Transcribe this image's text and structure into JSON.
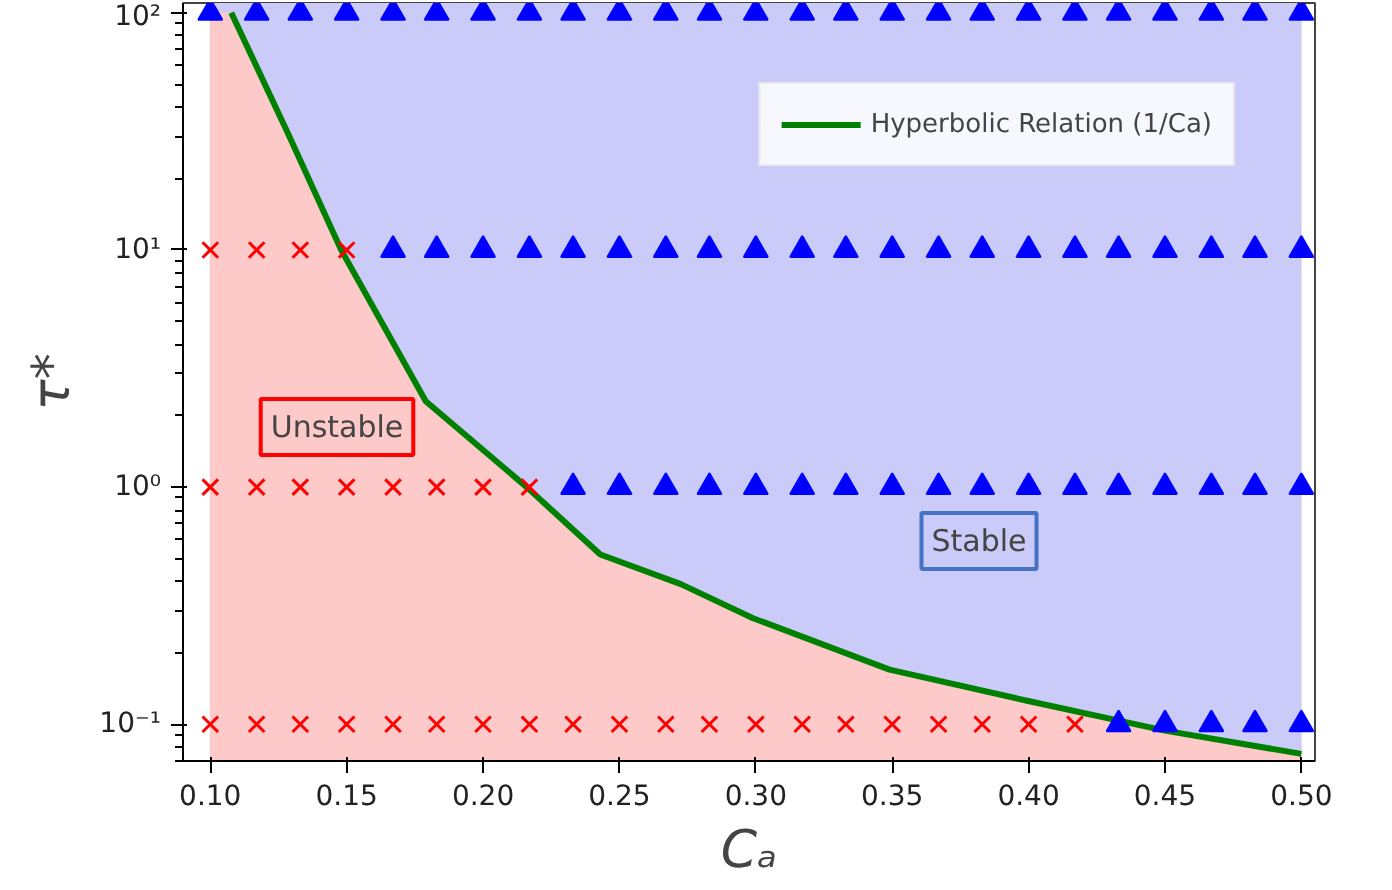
{
  "chart_data": {
    "type": "scatter",
    "xlabel": "Cₐ",
    "ylabel": "τ*",
    "log": "y",
    "xlim": [
      0.09,
      0.505
    ],
    "ylim": [
      0.07,
      110
    ],
    "xticks": [
      {
        "value": 0.1,
        "label": "0.10"
      },
      {
        "value": 0.15,
        "label": "0.15"
      },
      {
        "value": 0.2,
        "label": "0.20"
      },
      {
        "value": 0.25,
        "label": "0.25"
      },
      {
        "value": 0.3,
        "label": "0.30"
      },
      {
        "value": 0.35,
        "label": "0.35"
      },
      {
        "value": 0.4,
        "label": "0.40"
      },
      {
        "value": 0.45,
        "label": "0.45"
      },
      {
        "value": 0.5,
        "label": "0.50"
      }
    ],
    "yticks": [
      {
        "value": 0.1,
        "label": "10⁻¹"
      },
      {
        "value": 1,
        "label": "10⁰"
      },
      {
        "value": 10,
        "label": "10¹"
      },
      {
        "value": 100,
        "label": "10²"
      }
    ],
    "grid": false,
    "legend": "top right",
    "line_style": "solid",
    "bands": [
      {
        "axis": "x",
        "from": 0.1,
        "to": 0.5,
        "color": "#cbcbf9"
      }
    ],
    "series": [
      {
        "type": "area",
        "color": "#fdc9c9",
        "x": [
          0.1,
          0.1077,
          0.1285,
          0.148,
          0.179,
          0.216,
          0.243,
          0.2725,
          0.299,
          0.349,
          0.399,
          0.45,
          0.5
        ],
        "values": [
          100,
          100,
          31,
          10,
          2.3,
          1,
          0.52,
          0.39,
          0.28,
          0.17,
          0.126,
          0.094,
          0.075
        ]
      },
      {
        "type": "line",
        "name": "Hyperbolic Relation (1/Ca)",
        "color": "#008000",
        "marker": "none",
        "x": [
          0.1077,
          0.1285,
          0.148,
          0.179,
          0.216,
          0.243,
          0.2725,
          0.299,
          0.349,
          0.399,
          0.45,
          0.5
        ],
        "values": [
          100,
          31,
          10,
          2.3,
          1,
          0.52,
          0.39,
          0.28,
          0.17,
          0.126,
          0.094,
          0.075
        ]
      },
      {
        "color": "#ff0000",
        "marker": "cross",
        "x": [
          0.1,
          0.117,
          0.133,
          0.15,
          0.1,
          0.117,
          0.133,
          0.15,
          0.167,
          0.183,
          0.2,
          0.217,
          0.1,
          0.117,
          0.133,
          0.15,
          0.167,
          0.183,
          0.2,
          0.217,
          0.233,
          0.25,
          0.267,
          0.283,
          0.3,
          0.317,
          0.333,
          0.35,
          0.367,
          0.383,
          0.4,
          0.417
        ],
        "values": [
          10,
          10,
          10,
          10,
          1,
          1,
          1,
          1,
          1,
          1,
          1,
          1,
          0.1,
          0.1,
          0.1,
          0.1,
          0.1,
          0.1,
          0.1,
          0.1,
          0.1,
          0.1,
          0.1,
          0.1,
          0.1,
          0.1,
          0.1,
          0.1,
          0.1,
          0.1,
          0.1,
          0.1
        ]
      },
      {
        "color": "#0000ff",
        "marker": "triangle",
        "x": [
          0.1,
          0.117,
          0.133,
          0.15,
          0.167,
          0.183,
          0.2,
          0.217,
          0.233,
          0.25,
          0.267,
          0.283,
          0.3,
          0.317,
          0.333,
          0.35,
          0.367,
          0.383,
          0.4,
          0.417,
          0.433,
          0.45,
          0.467,
          0.483,
          0.5,
          0.167,
          0.183,
          0.2,
          0.217,
          0.233,
          0.25,
          0.267,
          0.283,
          0.3,
          0.317,
          0.333,
          0.35,
          0.367,
          0.383,
          0.4,
          0.417,
          0.433,
          0.45,
          0.467,
          0.483,
          0.5,
          0.233,
          0.25,
          0.267,
          0.283,
          0.3,
          0.317,
          0.333,
          0.35,
          0.367,
          0.383,
          0.4,
          0.417,
          0.433,
          0.45,
          0.467,
          0.483,
          0.5,
          0.433,
          0.45,
          0.467,
          0.483,
          0.5
        ],
        "values": [
          100,
          100,
          100,
          100,
          100,
          100,
          100,
          100,
          100,
          100,
          100,
          100,
          100,
          100,
          100,
          100,
          100,
          100,
          100,
          100,
          100,
          100,
          100,
          100,
          100,
          10,
          10,
          10,
          10,
          10,
          10,
          10,
          10,
          10,
          10,
          10,
          10,
          10,
          10,
          10,
          10,
          10,
          10,
          10,
          10,
          10,
          1,
          1,
          1,
          1,
          1,
          1,
          1,
          1,
          1,
          1,
          1,
          1,
          1,
          1,
          1,
          1,
          1,
          0.1,
          0.1,
          0.1,
          0.1,
          0.1
        ]
      }
    ],
    "annotations": [
      "Unstable",
      "Stable"
    ]
  }
}
